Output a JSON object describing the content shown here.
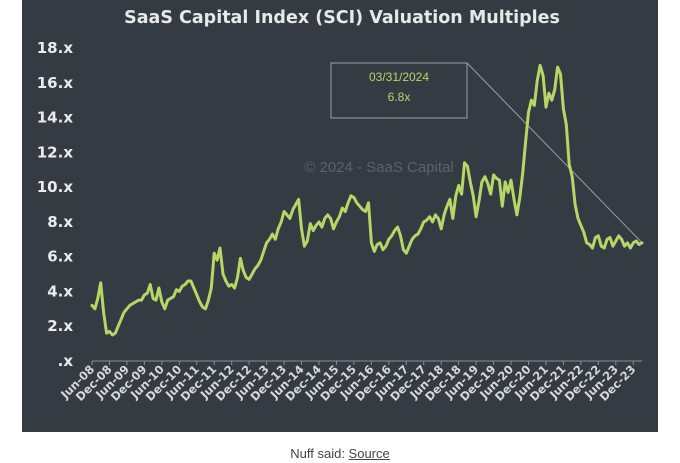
{
  "colors": {
    "panel_bg": "#353b42",
    "line": "#b6d766",
    "axis": "#8a8f94",
    "leader": "#9aa0a4",
    "text": "#e8e8e8"
  },
  "caption": {
    "prefix": "Nuff said: ",
    "link_label": "Source"
  },
  "chart_data": {
    "type": "line",
    "title": "SaaS Capital Index (SCI) Valuation Multiples",
    "watermark": "© 2024 - SaaS Capital",
    "xlabel": "",
    "ylabel": "",
    "ylim": [
      0,
      18
    ],
    "yticks": [
      {
        "value": 0,
        "label": ".x"
      },
      {
        "value": 2,
        "label": "2.x"
      },
      {
        "value": 4,
        "label": "4.x"
      },
      {
        "value": 6,
        "label": "6.x"
      },
      {
        "value": 8,
        "label": "8.x"
      },
      {
        "value": 10,
        "label": "10.x"
      },
      {
        "value": 12,
        "label": "12.x"
      },
      {
        "value": 14,
        "label": "14.x"
      },
      {
        "value": 16,
        "label": "16.x"
      },
      {
        "value": 18,
        "label": "18.x"
      }
    ],
    "xlim": [
      0,
      189
    ],
    "xticks": [
      {
        "index": 0,
        "label": "Jun-08"
      },
      {
        "index": 6,
        "label": "Dec-08"
      },
      {
        "index": 12,
        "label": "Jun-09"
      },
      {
        "index": 18,
        "label": "Dec-09"
      },
      {
        "index": 24,
        "label": "Jun-10"
      },
      {
        "index": 30,
        "label": "Dec-10"
      },
      {
        "index": 36,
        "label": "Jun-11"
      },
      {
        "index": 42,
        "label": "Dec-11"
      },
      {
        "index": 48,
        "label": "Jun-12"
      },
      {
        "index": 54,
        "label": "Dec-12"
      },
      {
        "index": 60,
        "label": "Jun-13"
      },
      {
        "index": 66,
        "label": "Dec-13"
      },
      {
        "index": 72,
        "label": "Jun-14"
      },
      {
        "index": 78,
        "label": "Dec-14"
      },
      {
        "index": 84,
        "label": "Jun-15"
      },
      {
        "index": 90,
        "label": "Dec-15"
      },
      {
        "index": 96,
        "label": "Jun-16"
      },
      {
        "index": 102,
        "label": "Dec-16"
      },
      {
        "index": 108,
        "label": "Jun-17"
      },
      {
        "index": 114,
        "label": "Dec-17"
      },
      {
        "index": 120,
        "label": "Jun-18"
      },
      {
        "index": 126,
        "label": "Dec-18"
      },
      {
        "index": 132,
        "label": "Jun-19"
      },
      {
        "index": 138,
        "label": "Dec-19"
      },
      {
        "index": 144,
        "label": "Jun-20"
      },
      {
        "index": 150,
        "label": "Dec-20"
      },
      {
        "index": 156,
        "label": "Jun-21"
      },
      {
        "index": 162,
        "label": "Dec-21"
      },
      {
        "index": 168,
        "label": "Jun-22"
      },
      {
        "index": 174,
        "label": "Dec-22"
      },
      {
        "index": 180,
        "label": "Jun-23"
      },
      {
        "index": 186,
        "label": "Dec-23"
      }
    ],
    "series": [
      {
        "name": "SCI Valuation Multiple",
        "points": [
          [
            0,
            3.2
          ],
          [
            1,
            3.0
          ],
          [
            2,
            3.6
          ],
          [
            3,
            4.5
          ],
          [
            4,
            2.8
          ],
          [
            5,
            1.6
          ],
          [
            6,
            1.7
          ],
          [
            7,
            1.5
          ],
          [
            8,
            1.6
          ],
          [
            9,
            2.0
          ],
          [
            10,
            2.4
          ],
          [
            11,
            2.8
          ],
          [
            12,
            3.0
          ],
          [
            13,
            3.2
          ],
          [
            14,
            3.3
          ],
          [
            15,
            3.4
          ],
          [
            16,
            3.5
          ],
          [
            17,
            3.5
          ],
          [
            18,
            3.8
          ],
          [
            19,
            3.9
          ],
          [
            20,
            4.4
          ],
          [
            21,
            3.6
          ],
          [
            22,
            3.5
          ],
          [
            23,
            4.2
          ],
          [
            24,
            3.4
          ],
          [
            25,
            3.0
          ],
          [
            26,
            3.5
          ],
          [
            27,
            3.6
          ],
          [
            28,
            3.7
          ],
          [
            29,
            4.1
          ],
          [
            30,
            4.0
          ],
          [
            31,
            4.3
          ],
          [
            32,
            4.4
          ],
          [
            33,
            4.6
          ],
          [
            34,
            4.6
          ],
          [
            35,
            4.2
          ],
          [
            36,
            3.8
          ],
          [
            37,
            3.4
          ],
          [
            38,
            3.1
          ],
          [
            39,
            3.0
          ],
          [
            40,
            3.5
          ],
          [
            41,
            4.2
          ],
          [
            42,
            6.2
          ],
          [
            43,
            5.8
          ],
          [
            44,
            6.5
          ],
          [
            45,
            5.0
          ],
          [
            46,
            4.6
          ],
          [
            47,
            4.3
          ],
          [
            48,
            4.4
          ],
          [
            49,
            4.2
          ],
          [
            50,
            4.8
          ],
          [
            51,
            5.9
          ],
          [
            52,
            5.2
          ],
          [
            53,
            4.8
          ],
          [
            54,
            4.7
          ],
          [
            55,
            5.0
          ],
          [
            56,
            5.3
          ],
          [
            57,
            5.5
          ],
          [
            58,
            5.8
          ],
          [
            59,
            6.3
          ],
          [
            60,
            6.8
          ],
          [
            61,
            7.0
          ],
          [
            62,
            7.3
          ],
          [
            63,
            7.0
          ],
          [
            64,
            7.6
          ],
          [
            65,
            8.0
          ],
          [
            66,
            8.6
          ],
          [
            67,
            8.4
          ],
          [
            68,
            8.2
          ],
          [
            69,
            8.7
          ],
          [
            70,
            9.0
          ],
          [
            71,
            9.3
          ],
          [
            72,
            7.6
          ],
          [
            73,
            6.6
          ],
          [
            74,
            6.9
          ],
          [
            75,
            7.9
          ],
          [
            76,
            7.5
          ],
          [
            77,
            7.8
          ],
          [
            78,
            8.0
          ],
          [
            79,
            7.7
          ],
          [
            80,
            8.2
          ],
          [
            81,
            8.4
          ],
          [
            82,
            8.2
          ],
          [
            83,
            7.6
          ],
          [
            84,
            8.0
          ],
          [
            85,
            8.3
          ],
          [
            86,
            8.8
          ],
          [
            87,
            8.6
          ],
          [
            88,
            9.1
          ],
          [
            89,
            9.5
          ],
          [
            90,
            9.4
          ],
          [
            91,
            9.1
          ],
          [
            92,
            8.9
          ],
          [
            93,
            8.7
          ],
          [
            94,
            8.6
          ],
          [
            95,
            9.1
          ],
          [
            96,
            6.8
          ],
          [
            97,
            6.3
          ],
          [
            98,
            6.7
          ],
          [
            99,
            6.8
          ],
          [
            100,
            6.4
          ],
          [
            101,
            6.6
          ],
          [
            102,
            7.0
          ],
          [
            103,
            7.2
          ],
          [
            104,
            7.5
          ],
          [
            105,
            7.7
          ],
          [
            106,
            7.2
          ],
          [
            107,
            6.4
          ],
          [
            108,
            6.2
          ],
          [
            109,
            6.6
          ],
          [
            110,
            7.0
          ],
          [
            111,
            7.2
          ],
          [
            112,
            7.3
          ],
          [
            113,
            7.6
          ],
          [
            114,
            8.0
          ],
          [
            115,
            8.1
          ],
          [
            116,
            8.3
          ],
          [
            117,
            8.0
          ],
          [
            118,
            8.4
          ],
          [
            119,
            8.2
          ],
          [
            120,
            7.6
          ],
          [
            121,
            8.4
          ],
          [
            122,
            8.9
          ],
          [
            123,
            9.3
          ],
          [
            124,
            8.2
          ],
          [
            125,
            9.5
          ],
          [
            126,
            10.1
          ],
          [
            127,
            9.6
          ],
          [
            128,
            11.4
          ],
          [
            129,
            11.2
          ],
          [
            130,
            10.3
          ],
          [
            131,
            9.5
          ],
          [
            132,
            8.3
          ],
          [
            133,
            9.2
          ],
          [
            134,
            10.3
          ],
          [
            135,
            10.6
          ],
          [
            136,
            10.2
          ],
          [
            137,
            9.6
          ],
          [
            138,
            10.7
          ],
          [
            139,
            10.5
          ],
          [
            140,
            10.4
          ],
          [
            141,
            8.9
          ],
          [
            142,
            10.3
          ],
          [
            143,
            9.7
          ],
          [
            144,
            10.4
          ],
          [
            145,
            9.3
          ],
          [
            146,
            8.4
          ],
          [
            147,
            9.4
          ],
          [
            148,
            10.8
          ],
          [
            149,
            12.6
          ],
          [
            150,
            14.3
          ],
          [
            151,
            15.0
          ],
          [
            152,
            14.7
          ],
          [
            153,
            16.1
          ],
          [
            154,
            17.0
          ],
          [
            155,
            16.4
          ],
          [
            156,
            14.6
          ],
          [
            157,
            15.4
          ],
          [
            158,
            15.0
          ],
          [
            159,
            15.6
          ],
          [
            160,
            16.9
          ],
          [
            161,
            16.5
          ],
          [
            162,
            14.5
          ],
          [
            163,
            13.6
          ],
          [
            164,
            11.3
          ],
          [
            165,
            10.6
          ],
          [
            166,
            9.0
          ],
          [
            167,
            8.2
          ],
          [
            168,
            7.8
          ],
          [
            169,
            7.4
          ],
          [
            170,
            6.8
          ],
          [
            171,
            6.7
          ],
          [
            172,
            6.5
          ],
          [
            173,
            7.1
          ],
          [
            174,
            7.2
          ],
          [
            175,
            6.6
          ],
          [
            176,
            6.5
          ],
          [
            177,
            7.0
          ],
          [
            178,
            7.1
          ],
          [
            179,
            6.6
          ],
          [
            180,
            6.9
          ],
          [
            181,
            7.2
          ],
          [
            182,
            7.0
          ],
          [
            183,
            6.6
          ],
          [
            184,
            6.8
          ],
          [
            185,
            6.5
          ],
          [
            186,
            6.8
          ],
          [
            187,
            6.9
          ],
          [
            188,
            6.7
          ],
          [
            189,
            6.8
          ]
        ]
      }
    ],
    "annotation": {
      "date_label": "03/31/2024",
      "value_label": "6.8x",
      "target_index": 189,
      "target_value": 6.8
    }
  }
}
